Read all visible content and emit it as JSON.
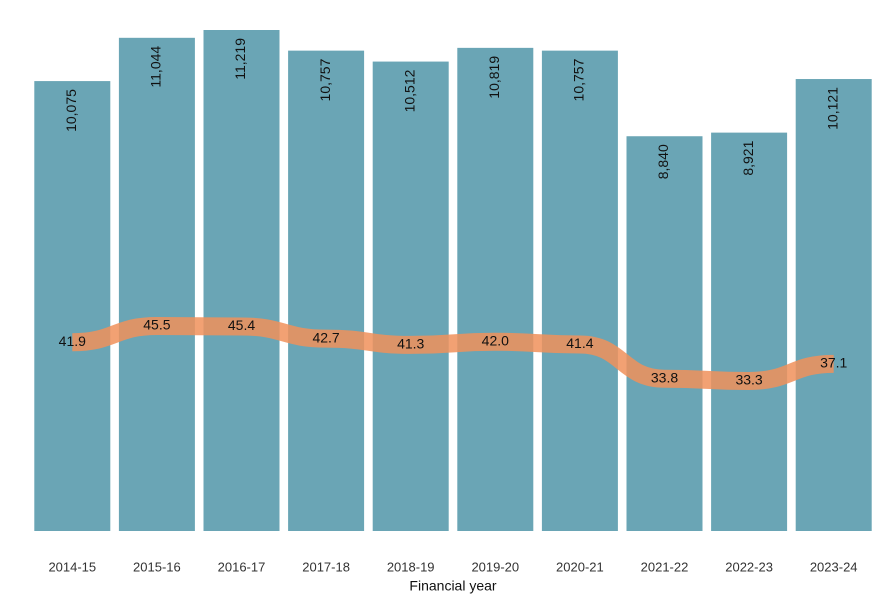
{
  "chart_data": {
    "type": "bar-line",
    "x_label": "Financial year",
    "categories": [
      "2014-15",
      "2015-16",
      "2016-17",
      "2017-18",
      "2018-19",
      "2019-20",
      "2020-21",
      "2021-22",
      "2022-23",
      "2023-24"
    ],
    "series": [
      {
        "type": "bar",
        "color": "#6aa5b5",
        "values": [
          10075,
          11044,
          11219,
          10757,
          10512,
          10819,
          10757,
          8840,
          8921,
          10121
        ],
        "value_labels": [
          "10,075",
          "11,044",
          "11,219",
          "10,757",
          "10,512",
          "10,819",
          "10,757",
          "8,840",
          "8,921",
          "10,121"
        ]
      },
      {
        "type": "line",
        "axis": "y2",
        "color": "#f0915a",
        "values": [
          41.9,
          45.5,
          45.4,
          42.7,
          41.3,
          42.0,
          41.4,
          33.8,
          33.3,
          37.1
        ],
        "value_labels": [
          "41.9",
          "45.5",
          "45.4",
          "42.7",
          "41.3",
          "42.0",
          "41.4",
          "33.8",
          "33.3",
          "37.1"
        ]
      }
    ]
  }
}
